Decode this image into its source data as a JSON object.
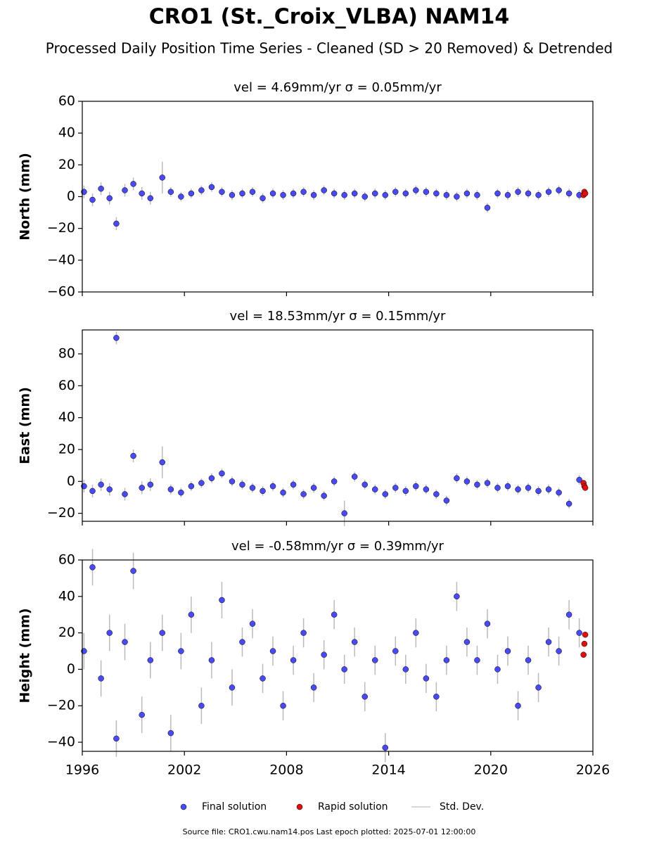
{
  "title": "CRO1 (St._Croix_VLBA) NAM14",
  "subtitle": "Processed Daily Position Time Series - Cleaned (SD > 20 Removed) & Detrended",
  "footer": "Source file: CRO1.cwu.nam14.pos  Last epoch plotted: 2025-07-01 12:00:00",
  "chart_data": [
    {
      "type": "scatter",
      "title": "vel = 4.69mm/yr   σ = 0.05mm/yr",
      "y_label": "North (mm)",
      "errors_label": "Std. Dev.",
      "error_color": "#bbbbbb",
      "xlim": [
        1996,
        2026
      ],
      "xticks": [
        1996,
        2002,
        2008,
        2014,
        2020,
        2026
      ],
      "ylim": [
        -60,
        60
      ],
      "yticks": [
        {
          "value": -60,
          "label": "−60"
        },
        {
          "value": -40,
          "label": "−40"
        },
        {
          "value": -20,
          "label": "−20"
        },
        0,
        20,
        40,
        60
      ],
      "series": [
        {
          "name": "Final solution",
          "color": "#4a4af5",
          "x": [
            1996.1,
            1996.6,
            1997.1,
            1997.6,
            1998.0,
            1998.5,
            1999.0,
            1999.5,
            2000.0,
            2000.7,
            2001.2,
            2001.8,
            2002.4,
            2003.0,
            2003.6,
            2004.2,
            2004.8,
            2005.4,
            2006.0,
            2006.6,
            2007.2,
            2007.8,
            2008.4,
            2009.0,
            2009.6,
            2010.2,
            2010.8,
            2011.4,
            2012.0,
            2012.6,
            2013.2,
            2013.8,
            2014.4,
            2015.0,
            2015.6,
            2016.2,
            2016.8,
            2017.4,
            2018.0,
            2018.6,
            2019.2,
            2019.8,
            2020.4,
            2021.0,
            2021.6,
            2022.2,
            2022.8,
            2023.4,
            2024.0,
            2024.6,
            2025.2
          ],
          "values": [
            3,
            -2,
            5,
            -1,
            -17,
            4,
            8,
            2,
            -1,
            12,
            3,
            0,
            2,
            4,
            6,
            3,
            1,
            2,
            3,
            -1,
            2,
            1,
            2,
            3,
            1,
            4,
            2,
            1,
            2,
            0,
            2,
            1,
            3,
            2,
            4,
            3,
            2,
            1,
            0,
            2,
            1,
            -7,
            2,
            1,
            3,
            2,
            1,
            3,
            4,
            2,
            1
          ],
          "errors": [
            4,
            4,
            4,
            4,
            4,
            4,
            4,
            4,
            4,
            10,
            3,
            3,
            3,
            3,
            3,
            3,
            3,
            3,
            3,
            3,
            3,
            3,
            3,
            3,
            3,
            3,
            3,
            3,
            3,
            3,
            3,
            3,
            3,
            3,
            3,
            3,
            3,
            3,
            3,
            3,
            3,
            3,
            3,
            3,
            3,
            3,
            3,
            3,
            3,
            3,
            3
          ]
        },
        {
          "name": "Rapid solution",
          "color": "#e01010",
          "x": [
            2025.45,
            2025.5,
            2025.55
          ],
          "values": [
            1,
            3,
            2
          ]
        }
      ]
    },
    {
      "type": "scatter",
      "title": "vel = 18.53mm/yr   σ = 0.15mm/yr",
      "y_label": "East (mm)",
      "error_color": "#bbbbbb",
      "xlim": [
        1996,
        2026
      ],
      "xticks": [
        1996,
        2002,
        2008,
        2014,
        2020,
        2026
      ],
      "ylim": [
        -25,
        95
      ],
      "yticks": [
        {
          "value": -20,
          "label": "−20"
        },
        0,
        20,
        40,
        60,
        80
      ],
      "series": [
        {
          "color": "#4a4af5",
          "x": [
            1996.1,
            1996.6,
            1997.1,
            1997.6,
            1998.0,
            1998.5,
            1999.0,
            1999.5,
            2000.0,
            2000.7,
            2001.2,
            2001.8,
            2002.4,
            2003.0,
            2003.6,
            2004.2,
            2004.8,
            2005.4,
            2006.0,
            2006.6,
            2007.2,
            2007.8,
            2008.4,
            2009.0,
            2009.6,
            2010.2,
            2010.8,
            2011.4,
            2012.0,
            2012.6,
            2013.2,
            2013.8,
            2014.4,
            2015.0,
            2015.6,
            2016.2,
            2016.8,
            2017.4,
            2018.0,
            2018.6,
            2019.2,
            2019.8,
            2020.4,
            2021.0,
            2021.6,
            2022.2,
            2022.8,
            2023.4,
            2024.0,
            2024.6,
            2025.2
          ],
          "values": [
            -3,
            -6,
            -2,
            -5,
            90,
            -8,
            16,
            -4,
            -2,
            12,
            -5,
            -7,
            -3,
            -1,
            2,
            5,
            0,
            -2,
            -4,
            -6,
            -3,
            -7,
            -2,
            -8,
            -4,
            -9,
            0,
            -20,
            3,
            -2,
            -5,
            -8,
            -4,
            -6,
            -3,
            -5,
            -8,
            -12,
            2,
            0,
            -2,
            -1,
            -4,
            -3,
            -5,
            -4,
            -6,
            -5,
            -7,
            -14,
            1
          ],
          "errors": [
            4,
            4,
            4,
            4,
            4,
            4,
            4,
            4,
            4,
            10,
            3,
            3,
            3,
            3,
            3,
            3,
            3,
            3,
            3,
            3,
            3,
            3,
            3,
            3,
            3,
            3,
            3,
            8,
            3,
            3,
            3,
            3,
            3,
            3,
            3,
            3,
            3,
            3,
            3,
            3,
            3,
            3,
            3,
            3,
            3,
            3,
            3,
            3,
            3,
            3,
            3
          ]
        },
        {
          "color": "#e01010",
          "x": [
            2025.45,
            2025.5,
            2025.55
          ],
          "values": [
            -1,
            -3,
            -4
          ]
        }
      ]
    },
    {
      "type": "scatter",
      "title": "vel = -0.58mm/yr   σ = 0.39mm/yr",
      "y_label": "Height (mm)",
      "error_color": "#bbbbbb",
      "xlim": [
        1996,
        2026
      ],
      "xticks": [
        1996,
        2002,
        2008,
        2014,
        2020,
        2026
      ],
      "ylim": [
        -45,
        60
      ],
      "yticks": [
        {
          "value": -40,
          "label": "−40"
        },
        {
          "value": -20,
          "label": "−20"
        },
        0,
        20,
        40,
        60
      ],
      "series": [
        {
          "color": "#4a4af5",
          "x": [
            1996.1,
            1996.6,
            1997.1,
            1997.6,
            1998.0,
            1998.5,
            1999.0,
            1999.5,
            2000.0,
            2000.7,
            2001.2,
            2001.8,
            2002.4,
            2003.0,
            2003.6,
            2004.2,
            2004.8,
            2005.4,
            2006.0,
            2006.6,
            2007.2,
            2007.8,
            2008.4,
            2009.0,
            2009.6,
            2010.2,
            2010.8,
            2011.4,
            2012.0,
            2012.6,
            2013.2,
            2013.8,
            2014.4,
            2015.0,
            2015.6,
            2016.2,
            2016.8,
            2017.4,
            2018.0,
            2018.6,
            2019.2,
            2019.8,
            2020.4,
            2021.0,
            2021.6,
            2022.2,
            2022.8,
            2023.4,
            2024.0,
            2024.6,
            2025.2
          ],
          "values": [
            10,
            56,
            -5,
            20,
            -38,
            15,
            54,
            -25,
            5,
            20,
            -35,
            10,
            30,
            -20,
            5,
            38,
            -10,
            15,
            25,
            -5,
            10,
            -20,
            5,
            20,
            -10,
            8,
            30,
            0,
            15,
            -15,
            5,
            -43,
            10,
            0,
            20,
            -5,
            -15,
            5,
            40,
            15,
            5,
            25,
            0,
            10,
            -20,
            5,
            -10,
            15,
            10,
            30,
            20
          ],
          "errors": [
            10,
            10,
            10,
            10,
            10,
            10,
            10,
            10,
            10,
            10,
            10,
            10,
            10,
            10,
            10,
            10,
            10,
            8,
            8,
            8,
            8,
            8,
            8,
            8,
            8,
            8,
            8,
            8,
            8,
            8,
            8,
            8,
            8,
            8,
            8,
            8,
            8,
            8,
            8,
            8,
            8,
            8,
            8,
            8,
            8,
            8,
            8,
            8,
            8,
            8,
            8
          ]
        },
        {
          "color": "#e01010",
          "x": [
            2025.45,
            2025.5,
            2025.55
          ],
          "values": [
            8,
            14,
            19
          ]
        }
      ]
    }
  ]
}
